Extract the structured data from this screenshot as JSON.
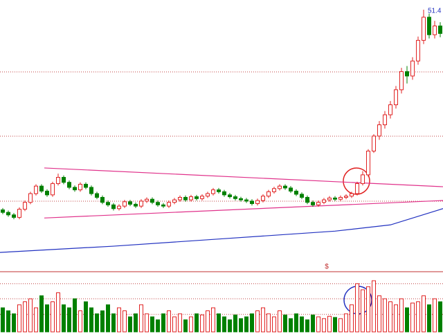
{
  "chart_data": {
    "type": "candlestick",
    "open": [
      19.4,
      19.0,
      18.6,
      18.2,
      19.5,
      20.6,
      22.0,
      23.2,
      22.4,
      21.8,
      23.6,
      24.6,
      23.8,
      23.0,
      22.6,
      23.5,
      23.0,
      22.0,
      21.4,
      20.6,
      20.2,
      19.6,
      20.0,
      20.7,
      20.3,
      20.0,
      20.8,
      21.1,
      20.6,
      20.2,
      20.0,
      20.6,
      21.0,
      21.4,
      21.0,
      21.5,
      21.2,
      21.6,
      22.0,
      22.6,
      22.3,
      21.8,
      21.5,
      21.2,
      21.0,
      20.8,
      20.4,
      20.9,
      21.6,
      22.3,
      22.8,
      23.2,
      22.9,
      22.4,
      21.9,
      21.4,
      20.6,
      20.2,
      20.6,
      21.0,
      21.3,
      21.1,
      21.4,
      21.6,
      22.0,
      23.6,
      25.0,
      28.8,
      31.2,
      33.0,
      34.6,
      36.2,
      38.6,
      41.5,
      40.8,
      43.2,
      46.5,
      50.2,
      47.4,
      48.8
    ],
    "high": [
      19.7,
      19.3,
      18.9,
      19.8,
      20.9,
      22.3,
      23.5,
      23.5,
      22.7,
      23.9,
      25.2,
      24.9,
      24.1,
      23.3,
      23.8,
      23.8,
      23.3,
      22.3,
      21.7,
      20.9,
      20.5,
      20.3,
      21.0,
      21.0,
      20.6,
      21.1,
      21.4,
      21.4,
      20.9,
      20.5,
      20.9,
      21.3,
      21.7,
      21.7,
      21.8,
      21.8,
      21.9,
      22.3,
      22.9,
      22.9,
      22.6,
      22.1,
      21.8,
      21.5,
      21.3,
      21.1,
      21.2,
      21.9,
      22.6,
      23.1,
      23.5,
      23.5,
      23.2,
      22.7,
      22.2,
      21.7,
      20.9,
      20.9,
      21.3,
      21.6,
      21.6,
      21.7,
      21.9,
      22.3,
      23.9,
      25.6,
      29.1,
      31.5,
      33.6,
      35.2,
      36.8,
      39.2,
      42.1,
      42.4,
      43.8,
      47.1,
      51.4,
      50.8,
      49.6,
      49.4
    ],
    "low": [
      18.7,
      18.3,
      17.9,
      17.9,
      19.2,
      20.3,
      21.7,
      22.1,
      21.5,
      21.5,
      23.3,
      23.5,
      22.7,
      22.3,
      22.3,
      22.7,
      21.7,
      21.1,
      20.3,
      19.9,
      19.3,
      19.3,
      19.7,
      20.0,
      19.7,
      19.7,
      20.5,
      20.3,
      19.9,
      19.7,
      19.7,
      20.3,
      20.7,
      20.7,
      20.7,
      20.9,
      20.9,
      21.3,
      21.7,
      22.0,
      21.5,
      21.2,
      20.9,
      20.7,
      20.5,
      20.1,
      20.1,
      20.6,
      21.3,
      22.0,
      22.5,
      22.6,
      22.1,
      21.6,
      21.1,
      20.3,
      19.9,
      19.9,
      20.3,
      20.7,
      20.8,
      20.8,
      21.1,
      21.3,
      21.7,
      23.3,
      24.7,
      28.5,
      30.6,
      32.4,
      34.0,
      35.6,
      38.0,
      39.6,
      40.2,
      42.6,
      45.9,
      46.8,
      46.8,
      47.0
    ],
    "close": [
      19.0,
      18.6,
      18.2,
      19.5,
      20.6,
      22.0,
      23.2,
      22.4,
      21.8,
      23.6,
      24.6,
      23.8,
      23.0,
      22.6,
      23.5,
      23.0,
      22.0,
      21.4,
      20.6,
      20.2,
      19.6,
      20.0,
      20.7,
      20.3,
      20.0,
      20.8,
      21.1,
      20.6,
      20.2,
      20.0,
      20.6,
      21.0,
      21.4,
      21.0,
      21.5,
      21.2,
      21.6,
      22.0,
      22.6,
      22.3,
      21.8,
      21.5,
      21.2,
      21.0,
      20.8,
      20.4,
      20.9,
      21.6,
      22.3,
      22.8,
      23.2,
      22.9,
      22.4,
      21.9,
      21.4,
      20.6,
      20.2,
      20.6,
      21.0,
      21.3,
      21.1,
      21.4,
      21.6,
      22.0,
      23.6,
      25.0,
      28.8,
      31.2,
      33.0,
      34.6,
      36.2,
      38.6,
      41.5,
      40.8,
      43.2,
      46.5,
      50.2,
      47.4,
      48.8,
      47.6
    ],
    "volume": [
      40,
      35,
      30,
      45,
      50,
      55,
      40,
      60,
      45,
      50,
      65,
      45,
      40,
      55,
      35,
      50,
      40,
      30,
      35,
      45,
      30,
      40,
      35,
      25,
      30,
      45,
      30,
      25,
      20,
      30,
      35,
      25,
      30,
      20,
      25,
      30,
      28,
      35,
      40,
      30,
      25,
      20,
      28,
      22,
      25,
      30,
      35,
      40,
      30,
      25,
      35,
      28,
      22,
      30,
      25,
      20,
      28,
      25,
      22,
      26,
      24,
      22,
      30,
      45,
      80,
      70,
      75,
      85,
      60,
      55,
      50,
      45,
      55,
      40,
      48,
      50,
      60,
      45,
      55,
      50
    ],
    "up_color": "#e02020",
    "down_color": "#008000",
    "ylim": [
      10.4,
      52.95
    ],
    "vlim": [
      0,
      100
    ],
    "price_gridlines": [
      41.45,
      31.18,
      20.79
    ],
    "volume_gridlines": [
      80,
      55,
      29
    ],
    "overlays": [
      {
        "color": "#e0308a",
        "x": [
          7.5,
          79.5
        ],
        "values": [
          26.1,
          23.1
        ]
      },
      {
        "color": "#e0308a",
        "x": [
          7.5,
          79.5
        ],
        "values": [
          18.1,
          20.9
        ]
      },
      {
        "color": "#2030c0",
        "x": [
          -0.5,
          20,
          40,
          60,
          70,
          79.5
        ],
        "values": [
          12.6,
          13.6,
          14.8,
          16.0,
          17.0,
          19.6
        ]
      }
    ],
    "marker": "$"
  }
}
